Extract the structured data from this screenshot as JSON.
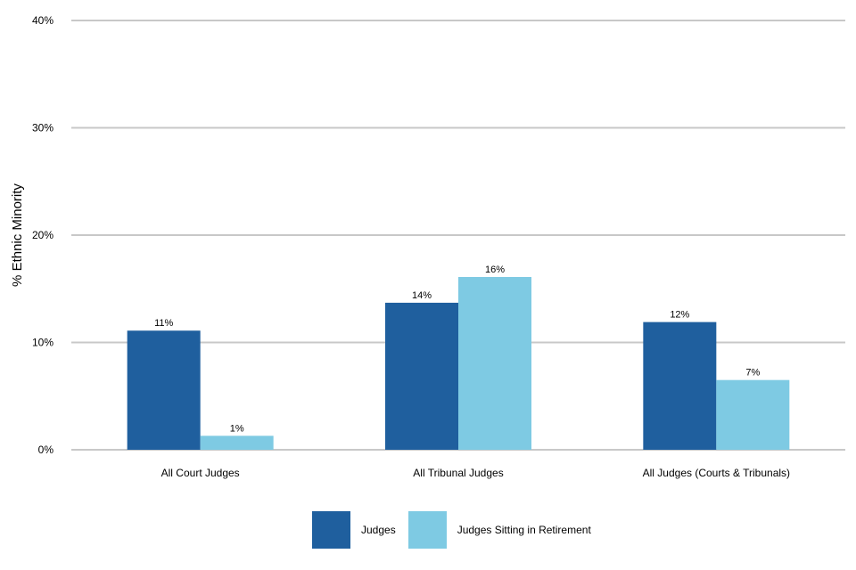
{
  "chart_data": {
    "type": "bar",
    "ylabel": "% Ethnic Minority",
    "ylim": [
      0,
      40
    ],
    "yticks": [
      0,
      10,
      20,
      30,
      40
    ],
    "ytick_labels": [
      "0%",
      "10%",
      "20%",
      "30%",
      "40%"
    ],
    "grid": true,
    "legend_position": "bottom",
    "categories": [
      "All Court Judges",
      "All Tribunal Judges",
      "All Judges (Courts & Tribunals)"
    ],
    "series": [
      {
        "name": "Judges",
        "color": "#1f5f9e",
        "values": [
          11.1,
          13.7,
          11.9
        ],
        "labels": [
          "11%",
          "14%",
          "12%"
        ]
      },
      {
        "name": "Judges Sitting in Retirement",
        "color": "#7ecae3",
        "values": [
          1.3,
          16.1,
          6.5
        ],
        "labels": [
          "1%",
          "16%",
          "7%"
        ]
      }
    ]
  }
}
